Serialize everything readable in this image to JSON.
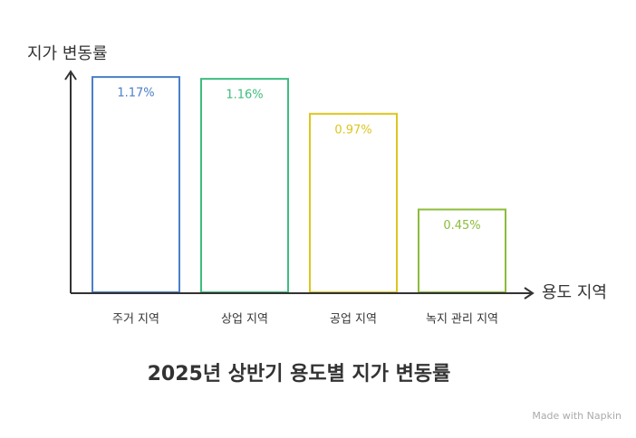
{
  "chart_data": {
    "type": "bar",
    "title": "2025년 상반기 용도별 지가 변동률",
    "y_label": "지가 변동률",
    "x_label": "용도 지역",
    "categories": [
      "주거 지역",
      "상업 지역",
      "공업 지역",
      "녹지 관리 지역"
    ],
    "values": [
      1.17,
      1.16,
      0.97,
      0.45
    ],
    "value_labels": [
      "1.17%",
      "1.16%",
      "0.97%",
      "0.45%"
    ],
    "colors": [
      "#4a7fc8",
      "#3dbd7d",
      "#ddc51f",
      "#8cbc3a"
    ],
    "ylim": [
      0,
      1.2
    ],
    "footer": "Made with Napkin"
  }
}
